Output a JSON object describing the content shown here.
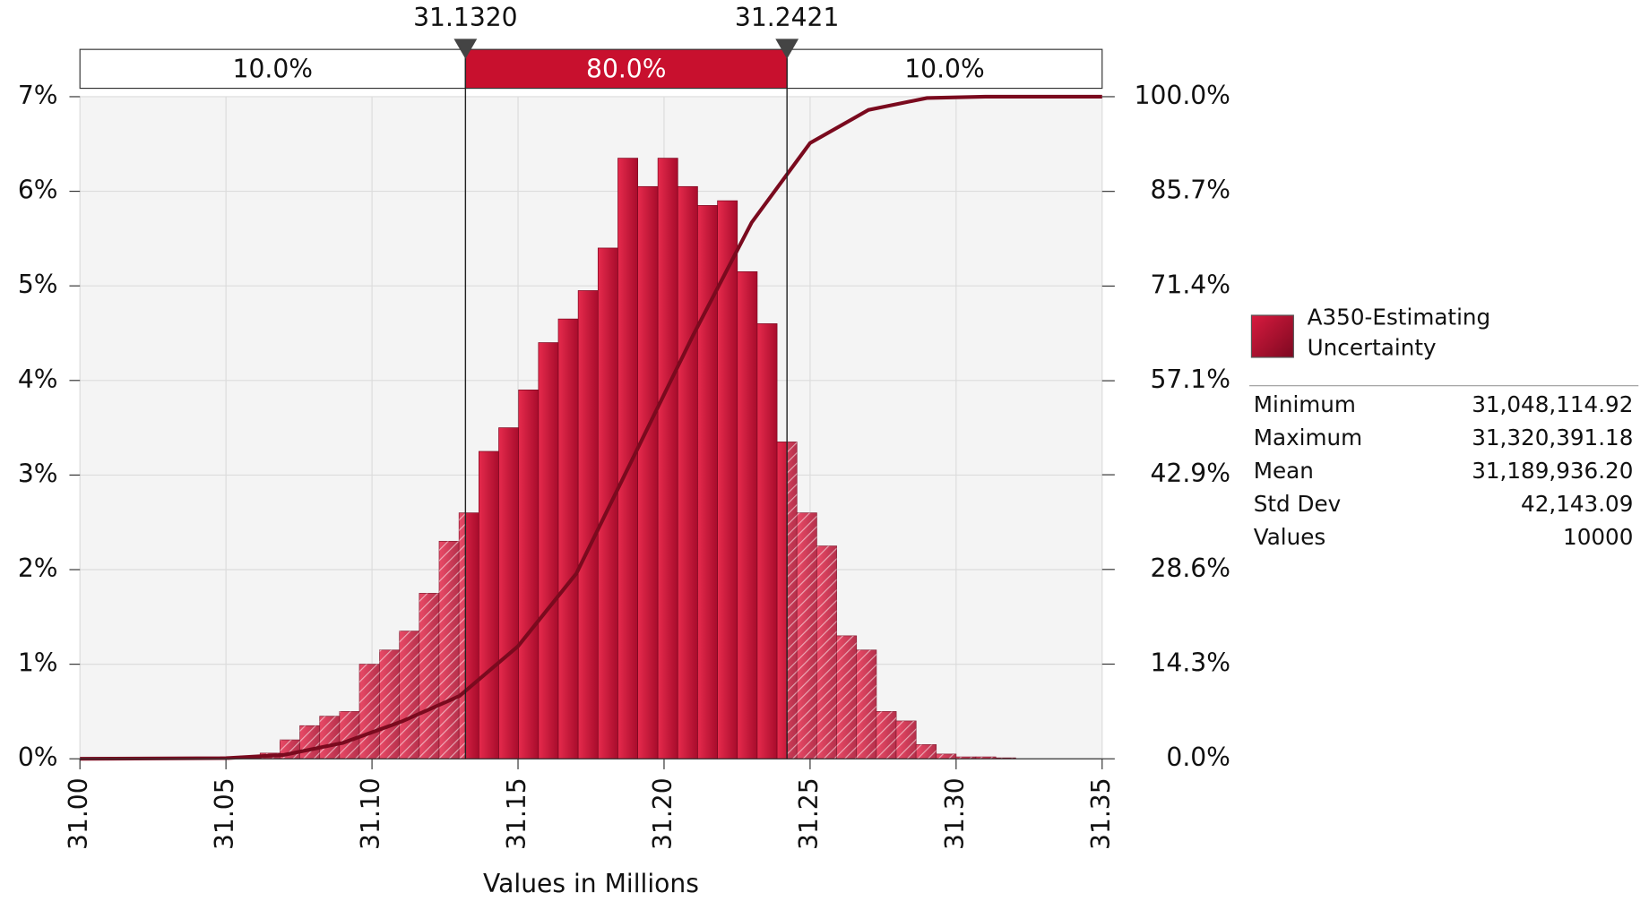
{
  "chart_data": {
    "type": "histogram",
    "xlabel": "Values in Millions",
    "bins": [
      31.0481,
      31.0549,
      31.0617,
      31.0685,
      31.0753,
      31.0821,
      31.0889,
      31.0957,
      31.1026,
      31.1094,
      31.1162,
      31.123,
      31.1298,
      31.1366,
      31.1434,
      31.1502,
      31.157,
      31.1638,
      31.1706,
      31.1774,
      31.1842,
      31.191,
      31.1979,
      31.2047,
      31.2115,
      31.2183,
      31.2251,
      31.2319,
      31.2387,
      31.2455,
      31.2523,
      31.2591,
      31.2659,
      31.2727,
      31.2795,
      31.2863,
      31.2932,
      31.3,
      31.3068,
      31.3136,
      31.3204
    ],
    "series": [
      {
        "name": "A350-Estimating Uncertainty",
        "color": "#c8102e",
        "values": [
          0.02,
          0.03,
          0.06,
          0.2,
          0.35,
          0.45,
          0.5,
          1.0,
          1.15,
          1.35,
          1.75,
          2.3,
          2.6,
          3.25,
          3.5,
          3.9,
          4.4,
          4.65,
          4.95,
          5.4,
          6.35,
          6.05,
          6.35,
          6.05,
          5.85,
          5.9,
          5.15,
          4.6,
          3.35,
          2.6,
          2.25,
          1.3,
          1.15,
          0.5,
          0.4,
          0.15,
          0.05,
          0.02,
          0.02,
          0.01
        ]
      }
    ],
    "cumulative": {
      "axis": "y2",
      "color": "#7a0a1e",
      "x": [
        31.0,
        31.05,
        31.07,
        31.09,
        31.11,
        31.13,
        31.15,
        31.17,
        31.19,
        31.21,
        31.23,
        31.25,
        31.27,
        31.29,
        31.31,
        31.35
      ],
      "values": [
        0,
        0.1,
        0.6,
        2.4,
        5.6,
        9.5,
        17,
        28,
        46,
        64,
        81,
        93,
        98,
        99.8,
        100,
        100
      ]
    },
    "xlim": [
      31.0,
      31.35
    ],
    "xticks": [
      {
        "value": 31.0,
        "label": "31.00"
      },
      31.05,
      {
        "value": 31.1,
        "label": "31.10"
      },
      31.15,
      {
        "value": 31.2,
        "label": "31.20"
      },
      31.25,
      {
        "value": 31.3,
        "label": "31.30"
      },
      31.35
    ],
    "ylim": [
      0,
      7
    ],
    "yticks": [
      {
        "value": 0,
        "label": "0%"
      },
      {
        "value": 1,
        "label": "1%"
      },
      {
        "value": 2,
        "label": "2%"
      },
      {
        "value": 3,
        "label": "3%"
      },
      {
        "value": 4,
        "label": "4%"
      },
      {
        "value": 5,
        "label": "5%"
      },
      {
        "value": 6,
        "label": "6%"
      },
      {
        "value": 7,
        "label": "7%"
      }
    ],
    "y2lim": [
      0,
      100
    ],
    "y2ticks": [
      {
        "value": 0,
        "label": "0.0%"
      },
      {
        "value": 14.3,
        "label": "14.3%"
      },
      {
        "value": 28.6,
        "label": "28.6%"
      },
      {
        "value": 42.9,
        "label": "42.9%"
      },
      {
        "value": 57.1,
        "label": "57.1%"
      },
      {
        "value": 71.4,
        "label": "71.4%"
      },
      {
        "value": 85.7,
        "label": "85.7%"
      },
      {
        "value": 100,
        "label": "100.0%"
      }
    ],
    "grid": true,
    "delimiters": [
      {
        "value": 31.132,
        "label": "31.1320"
      },
      31.2421
    ],
    "segments": {
      "values": [
        10,
        80,
        10
      ],
      "value_labels": [
        "10.0%",
        "80.0%",
        "10.0%"
      ]
    },
    "stats": [
      {
        "label": "Minimum",
        "value": "31,048,114.92"
      },
      {
        "label": "Maximum",
        "value": "31,320,391.18"
      },
      {
        "label": "Mean",
        "value": "31,189,936.20"
      },
      {
        "label": "Std Dev",
        "value": "42,143.09"
      },
      {
        "label": "Values",
        "value": "10000"
      }
    ]
  }
}
